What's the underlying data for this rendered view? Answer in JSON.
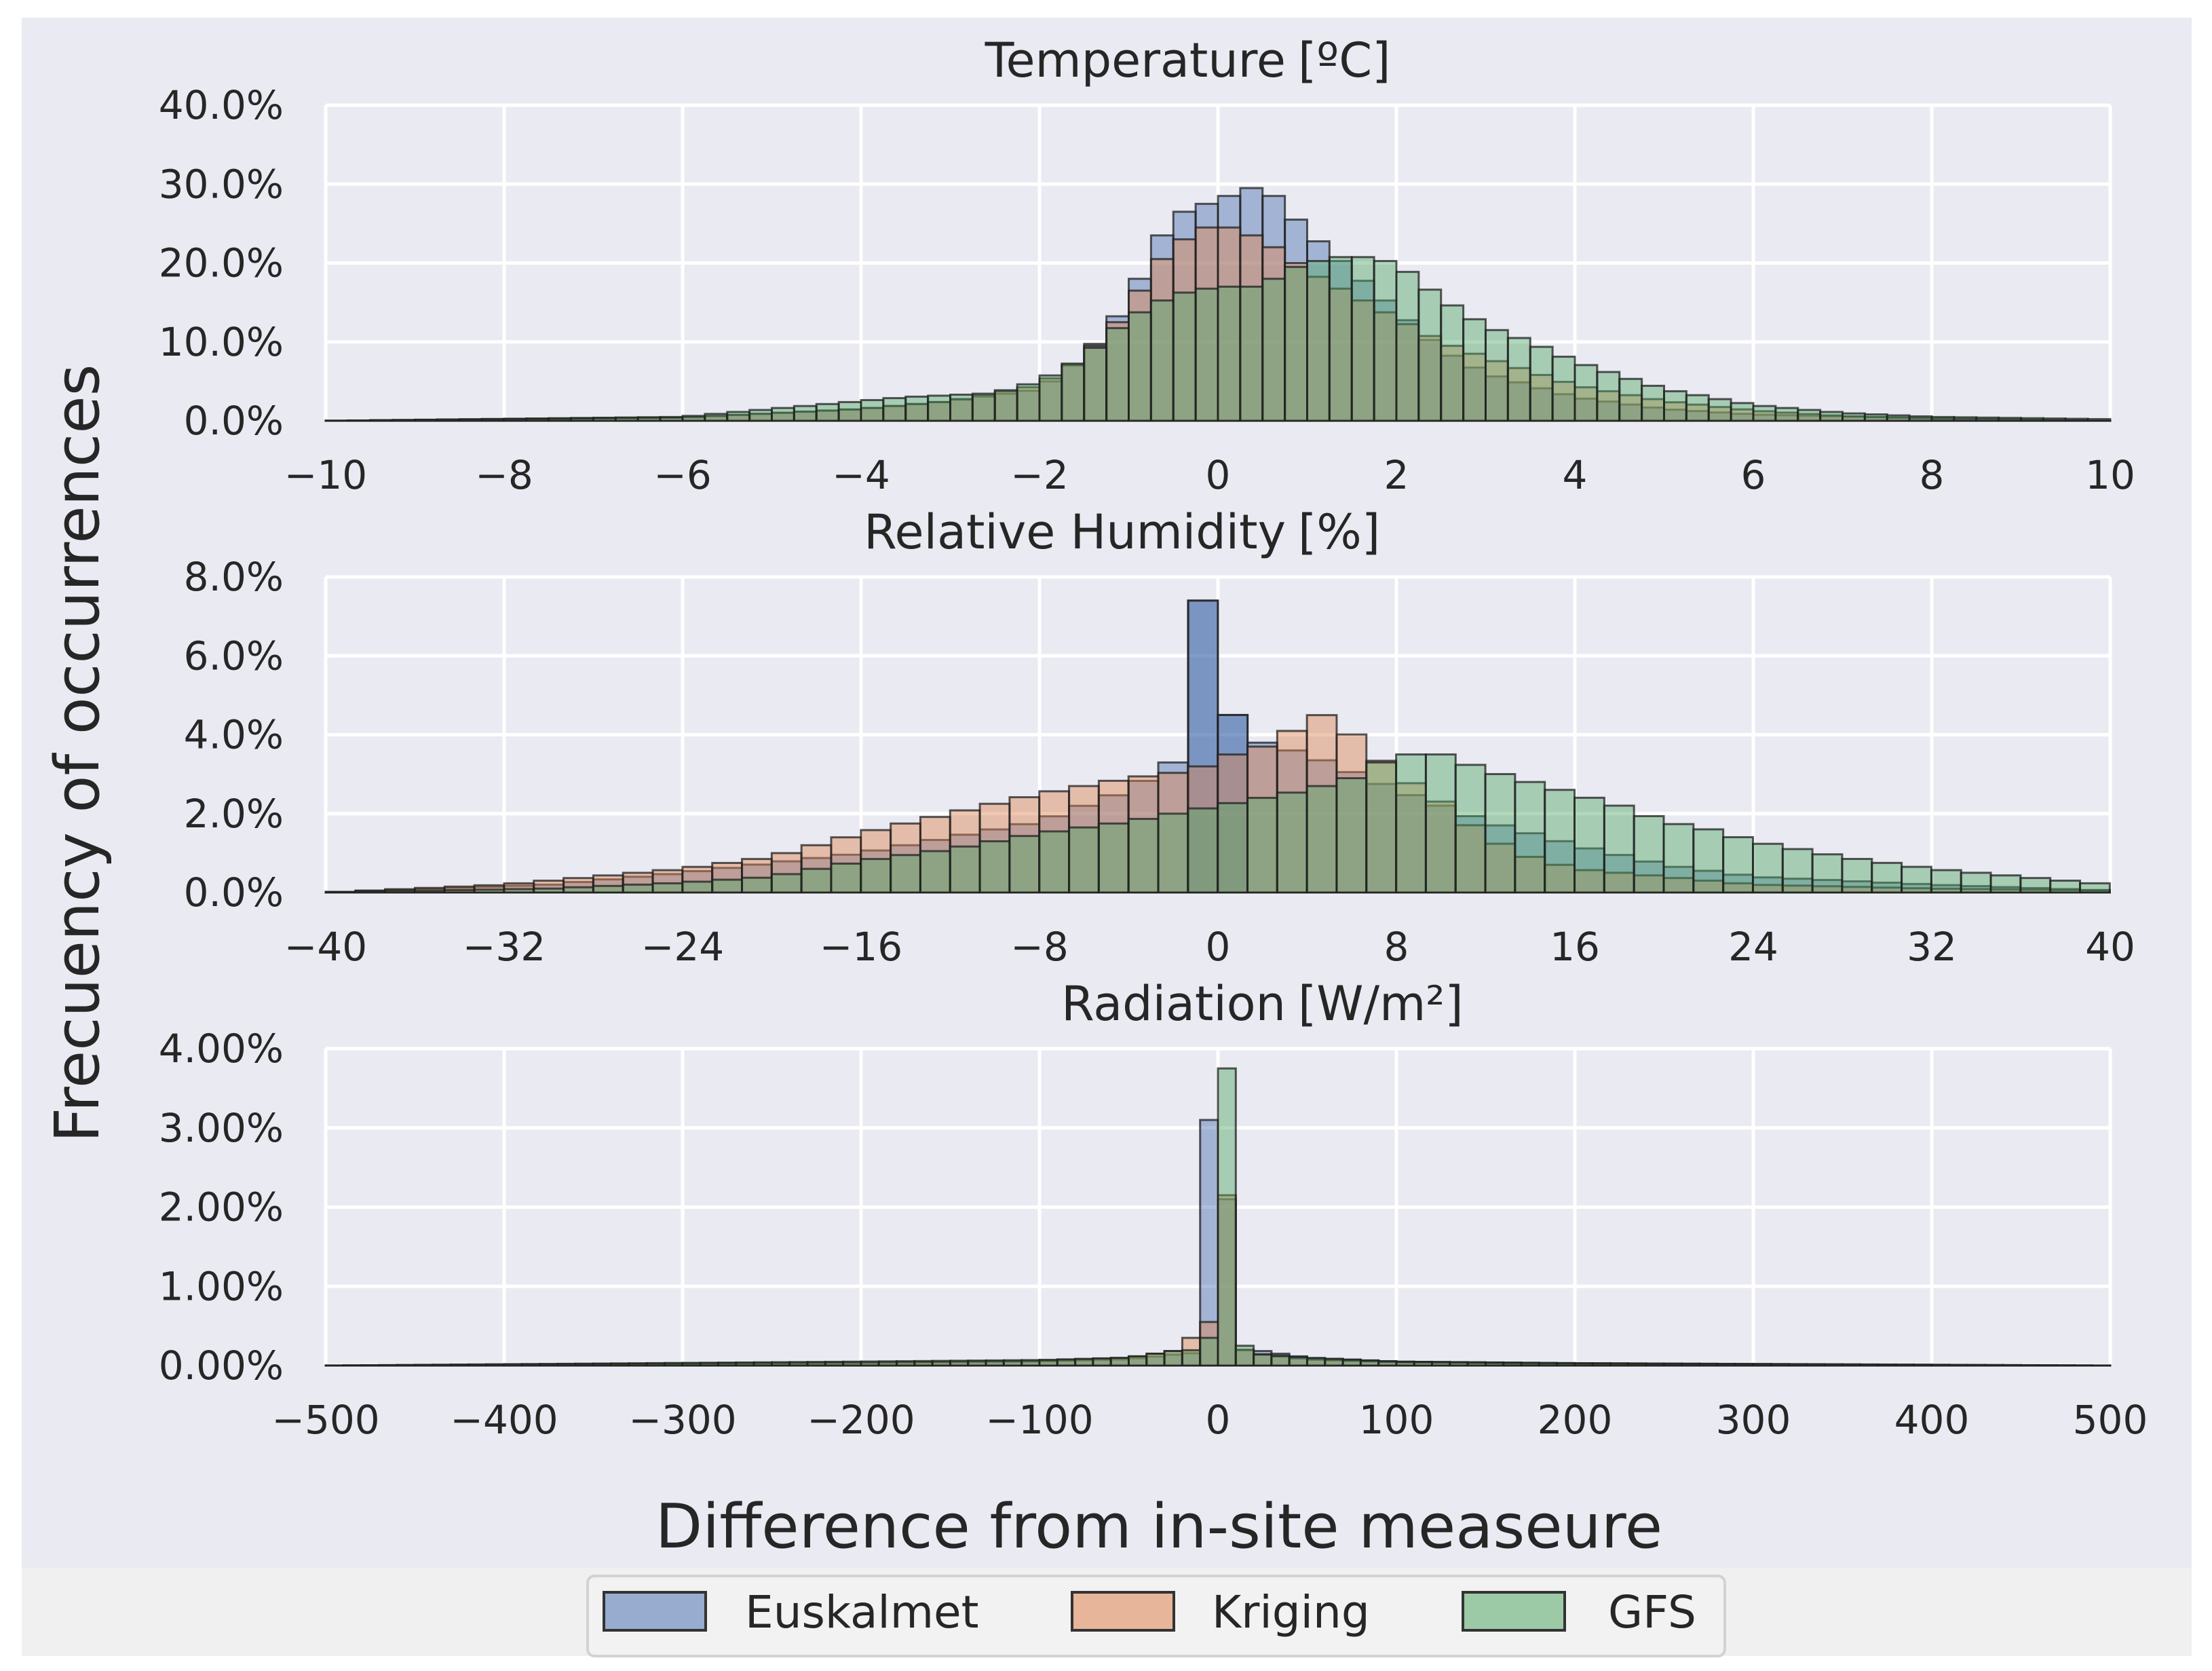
{
  "chart_data": {
    "type": "bar",
    "ylabel": "Frecuency of occurrences",
    "xlabel": "Difference from in-site measeure",
    "legend": {
      "placement": "bottom-center",
      "entries": [
        {
          "name": "Euskalmet",
          "color": "#4c72b0"
        },
        {
          "name": "Kriging",
          "color": "#dd8452"
        },
        {
          "name": "GFS",
          "color": "#55a868"
        }
      ]
    },
    "panels": [
      {
        "title": "Temperature",
        "unit": "[ºC]",
        "xlim": [
          -10,
          10
        ],
        "xticks": [
          -10,
          -8,
          -6,
          -4,
          -2,
          0,
          2,
          4,
          6,
          8,
          10
        ],
        "xtick_labels": [
          "−10",
          "−8",
          "−6",
          "−4",
          "−2",
          "0",
          "2",
          "4",
          "6",
          "8",
          "10"
        ],
        "ylim": [
          0,
          40
        ],
        "yticks": [
          0,
          10,
          20,
          30,
          40
        ],
        "ytick_labels": [
          "0.0%",
          "10.0%",
          "20.0%",
          "30.0%",
          "40.0%"
        ],
        "bin_edges": {
          "start": -10,
          "width": 0.25,
          "count": 80
        },
        "curves": {
          "Euskalmet": [
            [
              -10,
              0
            ],
            [
              -6,
              0.4
            ],
            [
              -4,
              1.5
            ],
            [
              -3,
              2.5
            ],
            [
              -2,
              4
            ],
            [
              -1.5,
              8
            ],
            [
              -1,
              15
            ],
            [
              -0.75,
              21
            ],
            [
              -0.5,
              26
            ],
            [
              0,
              28
            ],
            [
              0.25,
              29
            ],
            [
              0.5,
              30
            ],
            [
              0.75,
              27
            ],
            [
              1,
              24
            ],
            [
              1.5,
              19
            ],
            [
              2,
              14
            ],
            [
              2.5,
              9
            ],
            [
              3,
              6
            ],
            [
              4,
              3
            ],
            [
              5,
              1.5
            ],
            [
              6,
              0.8
            ],
            [
              8,
              0.3
            ],
            [
              10,
              0
            ]
          ],
          "Kriging": [
            [
              -10,
              0
            ],
            [
              -6,
              0.4
            ],
            [
              -4,
              1.5
            ],
            [
              -3,
              2.5
            ],
            [
              -2,
              4.5
            ],
            [
              -1.5,
              8
            ],
            [
              -1,
              14
            ],
            [
              -0.75,
              19
            ],
            [
              -0.5,
              22
            ],
            [
              -0.25,
              24
            ],
            [
              0,
              25
            ],
            [
              0.25,
              24
            ],
            [
              0.5,
              23
            ],
            [
              0.75,
              21
            ],
            [
              1,
              19
            ],
            [
              1.5,
              16
            ],
            [
              2,
              13
            ],
            [
              2.5,
              10
            ],
            [
              3,
              8
            ],
            [
              4,
              4.5
            ],
            [
              5,
              2.5
            ],
            [
              6,
              1.3
            ],
            [
              7,
              0.6
            ],
            [
              8,
              0.3
            ],
            [
              10,
              0
            ]
          ],
          "GFS": [
            [
              -10,
              0
            ],
            [
              -6,
              0.5
            ],
            [
              -4,
              2.5
            ],
            [
              -3.5,
              3
            ],
            [
              -2.5,
              3.5
            ],
            [
              -2,
              5
            ],
            [
              -1.5,
              8
            ],
            [
              -1,
              13
            ],
            [
              -0.5,
              16
            ],
            [
              0,
              17
            ],
            [
              0.5,
              17
            ],
            [
              0.75,
              19
            ],
            [
              1,
              20
            ],
            [
              1.5,
              21
            ],
            [
              2,
              20
            ],
            [
              2.5,
              15.5
            ],
            [
              3,
              12
            ],
            [
              3.5,
              10
            ],
            [
              4,
              7.5
            ],
            [
              5,
              4
            ],
            [
              6,
              2
            ],
            [
              7,
              1
            ],
            [
              8,
              0.5
            ],
            [
              10,
              0.2
            ]
          ]
        }
      },
      {
        "title": "Relative Humidity",
        "unit": "[%]",
        "xlim": [
          -40,
          40
        ],
        "xticks": [
          -40,
          -32,
          -24,
          -16,
          -8,
          0,
          8,
          16,
          24,
          32,
          40
        ],
        "xtick_labels": [
          "−40",
          "−32",
          "−24",
          "−16",
          "−8",
          "0",
          "8",
          "16",
          "24",
          "32",
          "40"
        ],
        "ylim": [
          0,
          8
        ],
        "yticks": [
          0,
          2,
          4,
          6,
          8
        ],
        "ytick_labels": [
          "0.0%",
          "2.0%",
          "4.0%",
          "6.0%",
          "8.0%"
        ],
        "bin_edges": {
          "start": -40,
          "width": 1.333,
          "count": 60
        },
        "spikes": {
          "Euskalmet": [
            [
              -1.33,
              0,
              7.4
            ],
            [
              0,
              1.33,
              4.5
            ]
          ]
        },
        "curves": {
          "Euskalmet": [
            [
              -40,
              0
            ],
            [
              -30,
              0.2
            ],
            [
              -24,
              0.5
            ],
            [
              -16,
              1
            ],
            [
              -8,
              1.8
            ],
            [
              -4,
              2.6
            ],
            [
              -2,
              3.3
            ],
            [
              2,
              3.8
            ],
            [
              4,
              3.5
            ],
            [
              8,
              2.6
            ],
            [
              12,
              1.8
            ],
            [
              16,
              1.2
            ],
            [
              20,
              0.7
            ],
            [
              24,
              0.4
            ],
            [
              32,
              0.2
            ],
            [
              40,
              0.05
            ]
          ],
          "Kriging": [
            [
              -40,
              0
            ],
            [
              -32,
              0.2
            ],
            [
              -28,
              0.4
            ],
            [
              -24,
              0.6
            ],
            [
              -20,
              0.9
            ],
            [
              -16,
              1.5
            ],
            [
              -12,
              2
            ],
            [
              -8,
              2.5
            ],
            [
              -4,
              2.9
            ],
            [
              -1,
              3.1
            ],
            [
              0,
              3.4
            ],
            [
              2,
              3.7
            ],
            [
              4,
              4.3
            ],
            [
              5,
              4.6
            ],
            [
              6,
              4
            ],
            [
              7,
              3.5
            ],
            [
              8,
              3
            ],
            [
              10,
              2.3
            ],
            [
              12,
              1.4
            ],
            [
              14,
              0.9
            ],
            [
              16,
              0.6
            ],
            [
              20,
              0.4
            ],
            [
              24,
              0.2
            ],
            [
              32,
              0.1
            ],
            [
              40,
              0.05
            ]
          ],
          "GFS": [
            [
              -40,
              0
            ],
            [
              -30,
              0.1
            ],
            [
              -24,
              0.25
            ],
            [
              -20,
              0.4
            ],
            [
              -16,
              0.8
            ],
            [
              -12,
              1.1
            ],
            [
              -8,
              1.5
            ],
            [
              -4,
              1.8
            ],
            [
              0,
              2.2
            ],
            [
              4,
              2.6
            ],
            [
              6,
              2.9
            ],
            [
              8,
              3.5
            ],
            [
              10,
              3.5
            ],
            [
              12,
              3.1
            ],
            [
              14,
              2.8
            ],
            [
              16,
              2.5
            ],
            [
              18,
              2.2
            ],
            [
              20,
              1.8
            ],
            [
              22,
              1.6
            ],
            [
              24,
              1.3
            ],
            [
              28,
              0.9
            ],
            [
              32,
              0.6
            ],
            [
              36,
              0.4
            ],
            [
              40,
              0.2
            ]
          ]
        }
      },
      {
        "title": "Radiation",
        "unit": "[W/m²]",
        "xlim": [
          -500,
          500
        ],
        "xticks": [
          -500,
          -400,
          -300,
          -200,
          -100,
          0,
          100,
          200,
          300,
          400,
          500
        ],
        "xtick_labels": [
          "−500",
          "−400",
          "−300",
          "−200",
          "−100",
          "0",
          "100",
          "200",
          "300",
          "400",
          "500"
        ],
        "ylim": [
          0,
          4
        ],
        "yticks": [
          0,
          1,
          2,
          3,
          4
        ],
        "ytick_labels": [
          "0.00%",
          "1.00%",
          "2.00%",
          "3.00%",
          "4.00%"
        ],
        "bin_edges": {
          "start": -500,
          "width": 10,
          "count": 100
        },
        "spikes": {
          "Euskalmet": [
            [
              -10,
              0,
              3.1
            ],
            [
              0,
              10,
              2.1
            ]
          ],
          "Kriging": [
            [
              -20,
              -10,
              0.35
            ],
            [
              -10,
              0,
              0.55
            ],
            [
              0,
              10,
              2.15
            ],
            [
              10,
              20,
              0.2
            ]
          ],
          "GFS": [
            [
              -10,
              0,
              0.35
            ],
            [
              0,
              10,
              3.75
            ],
            [
              10,
              20,
              0.25
            ]
          ]
        },
        "curves": {
          "Euskalmet": [
            [
              -500,
              0
            ],
            [
              -200,
              0.03
            ],
            [
              -100,
              0.05
            ],
            [
              -50,
              0.08
            ],
            [
              -20,
              0.15
            ],
            [
              20,
              0.2
            ],
            [
              50,
              0.1
            ],
            [
              100,
              0.05
            ],
            [
              200,
              0.03
            ],
            [
              500,
              0
            ]
          ],
          "Kriging": [
            [
              -500,
              0
            ],
            [
              -200,
              0.04
            ],
            [
              -100,
              0.06
            ],
            [
              -50,
              0.1
            ],
            [
              -20,
              0.2
            ],
            [
              20,
              0.15
            ],
            [
              50,
              0.08
            ],
            [
              100,
              0.04
            ],
            [
              200,
              0.02
            ],
            [
              500,
              0
            ]
          ],
          "GFS": [
            [
              -500,
              0
            ],
            [
              -200,
              0.05
            ],
            [
              -100,
              0.07
            ],
            [
              -50,
              0.1
            ],
            [
              -20,
              0.2
            ],
            [
              20,
              0.15
            ],
            [
              50,
              0.1
            ],
            [
              100,
              0.05
            ],
            [
              200,
              0.03
            ],
            [
              500,
              0
            ]
          ]
        }
      }
    ]
  }
}
